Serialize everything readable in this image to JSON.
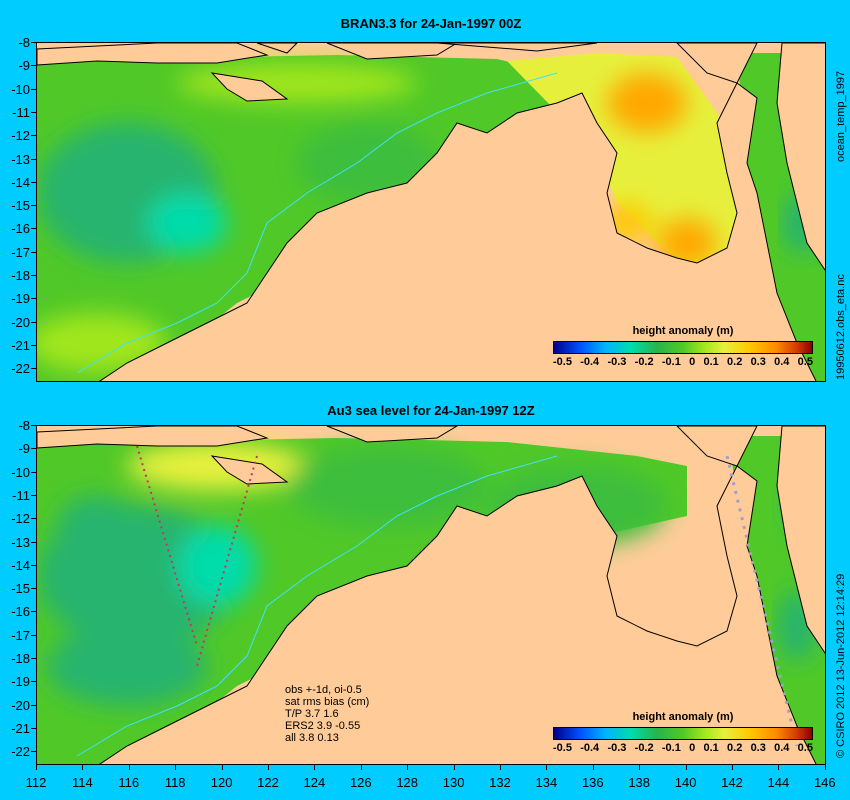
{
  "panels": [
    {
      "title": "BRAN3.3 for 24-Jan-1997 00Z"
    },
    {
      "title": "Au3 sea level  for 24-Jan-1997 12Z"
    }
  ],
  "y_ticks": [
    "-8",
    "-9",
    "-10",
    "-11",
    "-12",
    "-13",
    "-14",
    "-15",
    "-16",
    "-17",
    "-18",
    "-19",
    "-20",
    "-21",
    "-22"
  ],
  "x_ticks": [
    "112",
    "114",
    "116",
    "118",
    "120",
    "122",
    "124",
    "126",
    "128",
    "130",
    "132",
    "134",
    "136",
    "138",
    "140",
    "142",
    "144",
    "146"
  ],
  "colorbar": {
    "title": "height anomaly (m)",
    "labels": [
      "-0.5",
      "-0.4",
      "-0.3",
      "-0.2",
      "-0.1",
      "0",
      "0.1",
      "0.2",
      "0.3",
      "0.4",
      "0.5"
    ],
    "range": [
      -0.5,
      0.5
    ]
  },
  "side_labels": {
    "top_a": "ocean_temp_1997",
    "top_b": "19950612.obs_eta.nc",
    "bottom": "© CSIRO 2012  13-Jun-2012 12:14:29"
  },
  "stats": [
    "obs +-1d, oi-0.5",
    "sat rms bias (cm)",
    "T/P  3.7 1.6",
    "ERS2 3.9 -0.55",
    "all 3.8 0.13"
  ],
  "colors": {
    "background": "#00ccff",
    "land": "#ffcc99",
    "ocean_base": "#50c828"
  }
}
